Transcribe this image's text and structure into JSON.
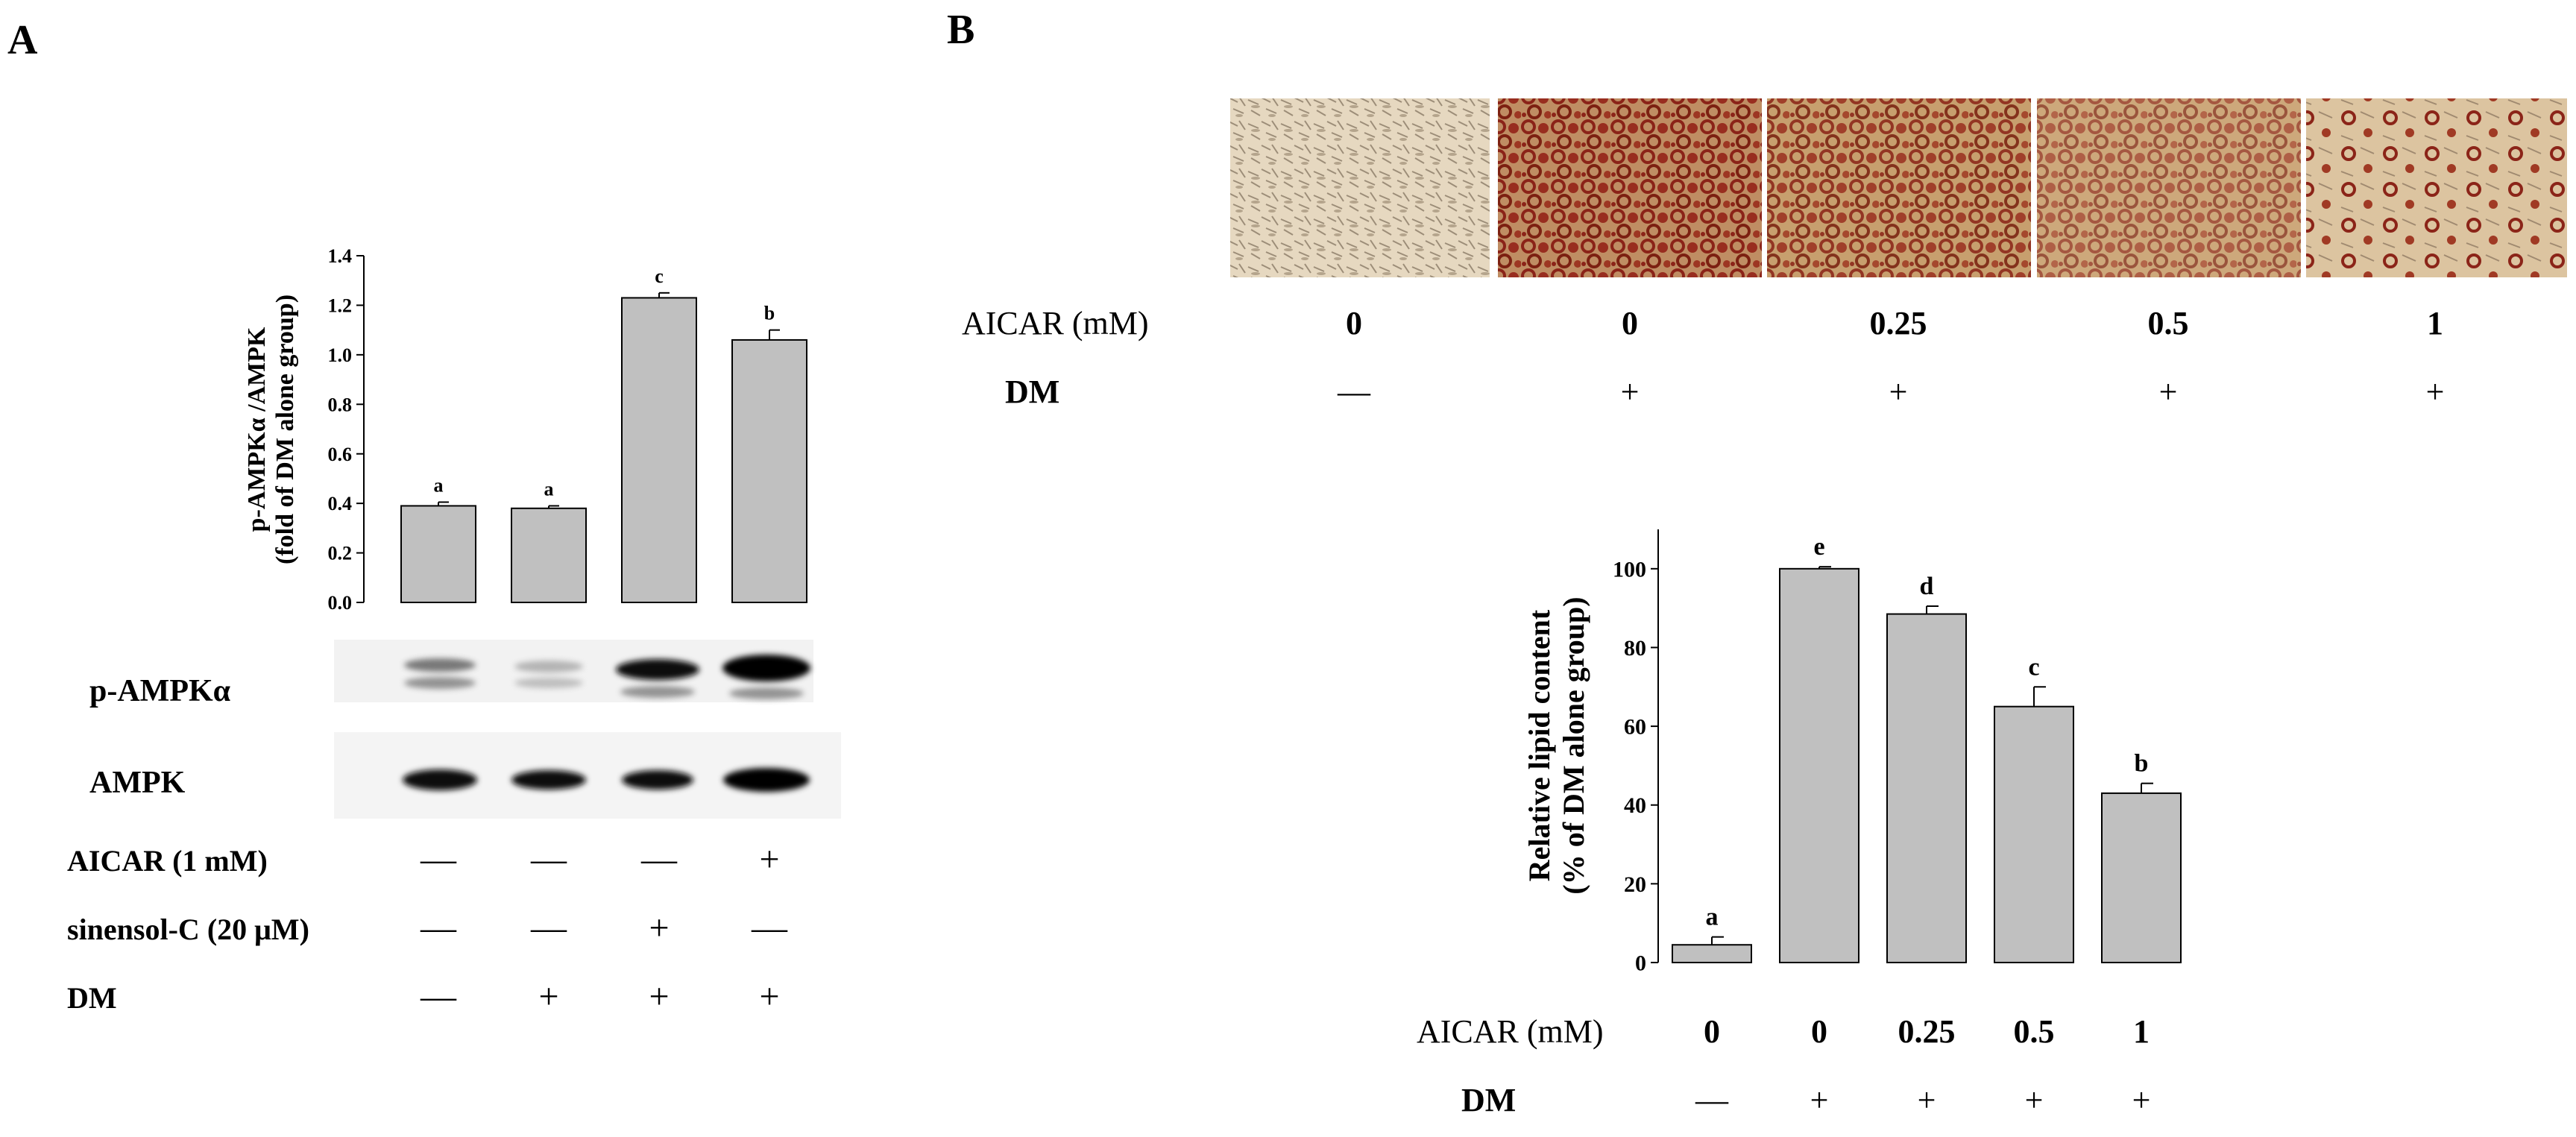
{
  "panels": {
    "a": {
      "letter": "A",
      "blot_labels": [
        "p-AMPKα",
        "AMPK"
      ],
      "treatments": [
        {
          "label": "AICAR (1 mM)",
          "signs": [
            "—",
            "—",
            "—",
            "+"
          ]
        },
        {
          "label": "sinensol-C (20 μM)",
          "signs": [
            "—",
            "—",
            "+",
            "—"
          ]
        },
        {
          "label": "DM",
          "signs": [
            "—",
            "+",
            "+",
            "+"
          ]
        }
      ]
    },
    "b": {
      "letter": "B",
      "image_treatments": [
        {
          "label": "AICAR (mM)",
          "values": [
            "0",
            "0",
            "0.25",
            "0.5",
            "1"
          ]
        },
        {
          "label": "DM",
          "values": [
            "—",
            "+",
            "+",
            "+",
            "+"
          ]
        }
      ],
      "chart_treatments": [
        {
          "label": "AICAR (mM)",
          "values": [
            "0",
            "0",
            "0.25",
            "0.5",
            "1"
          ]
        },
        {
          "label": "DM",
          "values": [
            "—",
            "+",
            "+",
            "+",
            "+"
          ]
        }
      ]
    }
  },
  "colors": {
    "bar": "#c0c0c0",
    "stain": "#8b2418",
    "background": "#ffffff"
  },
  "chart_data": [
    {
      "type": "bar",
      "panel": "A",
      "ylabel_lines": [
        "p-AMPKα /AMPK",
        "(fold of DM alone group)"
      ],
      "ylim": [
        0,
        1.4
      ],
      "yticks": [
        "0.0",
        "0.2",
        "0.4",
        "0.6",
        "0.8",
        "1.0",
        "1.2",
        "1.4"
      ],
      "values": [
        0.39,
        0.38,
        1.23,
        1.06
      ],
      "errors": [
        0.015,
        0.01,
        0.02,
        0.04
      ],
      "letters": [
        "a",
        "a",
        "c",
        "b"
      ],
      "grid": false
    },
    {
      "type": "bar",
      "panel": "B",
      "ylabel_lines": [
        "Relative lipid content",
        "(% of DM alone group)"
      ],
      "ylim": [
        0,
        110
      ],
      "yticks": [
        "0",
        "20",
        "40",
        "60",
        "80",
        "100"
      ],
      "values": [
        4.5,
        100,
        88.5,
        65,
        43
      ],
      "errors": [
        2.0,
        0.5,
        2.0,
        5.0,
        2.5
      ],
      "letters": [
        "a",
        "e",
        "d",
        "c",
        "b"
      ],
      "grid": false
    }
  ]
}
